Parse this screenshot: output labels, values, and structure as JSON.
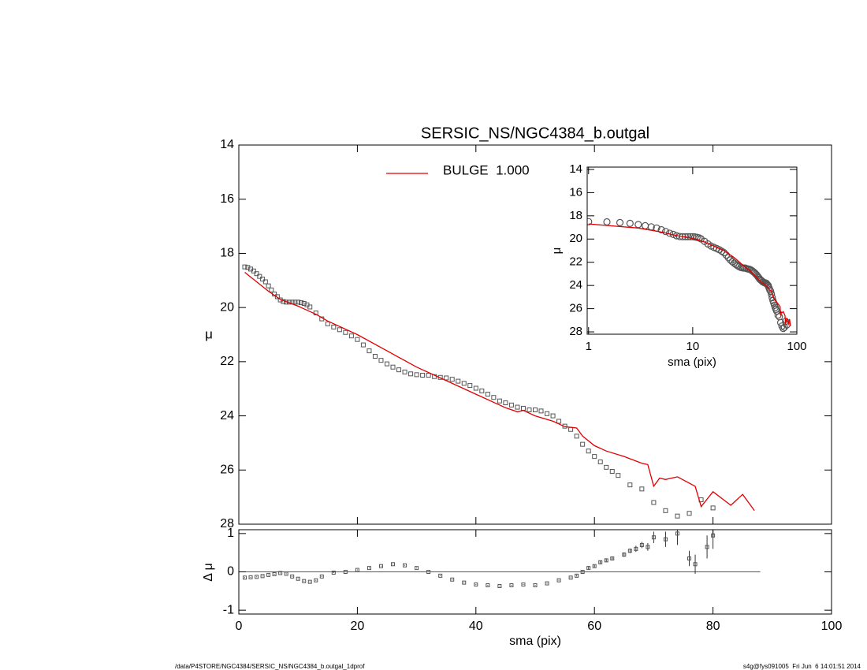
{
  "chart_data": [
    {
      "type": "scatter-line",
      "title": "SERSIC_NS/NGC4384_b.outgal",
      "ylabel": "μ",
      "xlim": [
        0,
        100
      ],
      "xticks": [
        0,
        20,
        40,
        60,
        80,
        100
      ],
      "ylim": [
        14,
        28
      ],
      "yticks": [
        14,
        16,
        18,
        20,
        22,
        24,
        26,
        28
      ],
      "y_reversed": true,
      "legend": "top",
      "series": [
        {
          "style": "points",
          "color": "#555555",
          "x": [
            1,
            1.5,
            2,
            2.5,
            3,
            3.5,
            4,
            4.5,
            5,
            5.5,
            6,
            6.5,
            7,
            7.5,
            8,
            8.5,
            9,
            9.5,
            10,
            10.5,
            11,
            11.5,
            12,
            13,
            14,
            15,
            16,
            17,
            18,
            19,
            20,
            21,
            22,
            23,
            24,
            25,
            26,
            27,
            28,
            29,
            30,
            31,
            32,
            33,
            34,
            35,
            36,
            37,
            38,
            39,
            40,
            41,
            42,
            43,
            44,
            45,
            46,
            47,
            48,
            49,
            50,
            51,
            52,
            53,
            54,
            55,
            56,
            57,
            58,
            59,
            60,
            61,
            62,
            63,
            64,
            66,
            68,
            70,
            72,
            74,
            76,
            78,
            80
          ],
          "values": [
            18.5,
            18.52,
            18.58,
            18.65,
            18.75,
            18.85,
            18.95,
            19.05,
            19.2,
            19.35,
            19.5,
            19.6,
            19.72,
            19.78,
            19.8,
            19.8,
            19.8,
            19.8,
            19.8,
            19.82,
            19.85,
            19.9,
            19.98,
            20.2,
            20.42,
            20.6,
            20.72,
            20.82,
            20.92,
            21.05,
            21.18,
            21.38,
            21.6,
            21.8,
            21.95,
            22.08,
            22.2,
            22.3,
            22.38,
            22.45,
            22.48,
            22.5,
            22.5,
            22.55,
            22.58,
            22.6,
            22.65,
            22.72,
            22.8,
            22.88,
            22.98,
            23.08,
            23.2,
            23.32,
            23.45,
            23.52,
            23.6,
            23.68,
            23.72,
            23.78,
            23.78,
            23.82,
            23.92,
            24.0,
            24.2,
            24.38,
            24.5,
            24.75,
            25.05,
            25.3,
            25.5,
            25.7,
            25.9,
            26.05,
            26.2,
            26.55,
            26.7,
            27.2,
            27.5,
            27.7,
            27.6,
            27.1,
            27.4
          ]
        },
        {
          "style": "line",
          "name": "BULGE  1.000",
          "color": "#e00000",
          "x": [
            1,
            3,
            5,
            7,
            10,
            13,
            15,
            20,
            25,
            30,
            35,
            40,
            45,
            47,
            48,
            50,
            53,
            55,
            57,
            58,
            60,
            62,
            65,
            68,
            69,
            70,
            71,
            72,
            74,
            77,
            78,
            80,
            83,
            85,
            87
          ],
          "values": [
            18.7,
            19.05,
            19.4,
            19.7,
            19.95,
            20.25,
            20.5,
            21.0,
            21.6,
            22.2,
            22.7,
            23.2,
            23.7,
            23.85,
            23.8,
            24.0,
            24.2,
            24.4,
            24.45,
            24.75,
            25.1,
            25.3,
            25.5,
            25.75,
            25.8,
            26.6,
            26.3,
            26.35,
            26.25,
            26.6,
            27.35,
            26.8,
            27.3,
            26.9,
            27.5
          ]
        }
      ]
    },
    {
      "type": "errorbar",
      "xlabel": "sma (pix)",
      "ylabel": "Δ μ",
      "xlim": [
        0,
        100
      ],
      "xticks": [
        0,
        20,
        40,
        60,
        80,
        100
      ],
      "ylim": [
        -1.1,
        1.1
      ],
      "yticks": [
        -1,
        0,
        1
      ],
      "color": "#555555",
      "x": [
        1,
        2,
        3,
        4,
        5,
        6,
        7,
        8,
        9,
        10,
        11,
        12,
        13,
        14,
        16,
        18,
        20,
        22,
        24,
        26,
        28,
        30,
        32,
        34,
        36,
        38,
        40,
        42,
        44,
        46,
        48,
        50,
        52,
        54,
        56,
        57,
        58,
        59,
        60,
        61,
        62,
        63,
        65,
        66,
        67,
        68,
        69,
        70,
        72,
        74,
        76,
        77,
        79,
        80
      ],
      "values": [
        -0.15,
        -0.14,
        -0.13,
        -0.11,
        -0.08,
        -0.06,
        -0.03,
        -0.05,
        -0.12,
        -0.18,
        -0.24,
        -0.26,
        -0.22,
        -0.12,
        -0.02,
        0.0,
        0.05,
        0.1,
        0.15,
        0.2,
        0.17,
        0.1,
        0.0,
        -0.1,
        -0.2,
        -0.28,
        -0.33,
        -0.35,
        -0.37,
        -0.35,
        -0.33,
        -0.35,
        -0.3,
        -0.22,
        -0.15,
        -0.1,
        0.0,
        0.1,
        0.15,
        0.25,
        0.3,
        0.35,
        0.45,
        0.55,
        0.6,
        0.7,
        0.65,
        0.9,
        0.85,
        1.0,
        0.35,
        0.2,
        0.65,
        0.95
      ],
      "errors": [
        0.01,
        0.01,
        0.01,
        0.01,
        0.01,
        0.01,
        0.01,
        0.01,
        0.01,
        0.01,
        0.01,
        0.01,
        0.01,
        0.01,
        0.01,
        0.01,
        0.01,
        0.01,
        0.01,
        0.01,
        0.01,
        0.01,
        0.01,
        0.01,
        0.01,
        0.01,
        0.01,
        0.01,
        0.01,
        0.01,
        0.01,
        0.01,
        0.01,
        0.01,
        0.01,
        0.02,
        0.02,
        0.03,
        0.03,
        0.04,
        0.04,
        0.05,
        0.06,
        0.06,
        0.08,
        0.08,
        0.1,
        0.15,
        0.2,
        0.3,
        0.2,
        0.25,
        0.3,
        0.35
      ]
    },
    {
      "type": "inset",
      "xlabel": "sma (pix)",
      "ylabel": "μ",
      "xscale": "log",
      "xlim": [
        0.97,
        100
      ],
      "xticks": [
        1,
        10,
        100
      ],
      "ylim": [
        13.8,
        28.2
      ],
      "yticks": [
        14,
        16,
        18,
        20,
        22,
        24,
        26,
        28
      ],
      "y_reversed": true
    }
  ],
  "footer": {
    "left": "/data/P4STORE/NGC4384/SERSIC_NS/NGC4384_b.outgal_1dprof",
    "right": "s4g@fys091005  Fri Jun  6 14:01:51 2014"
  }
}
